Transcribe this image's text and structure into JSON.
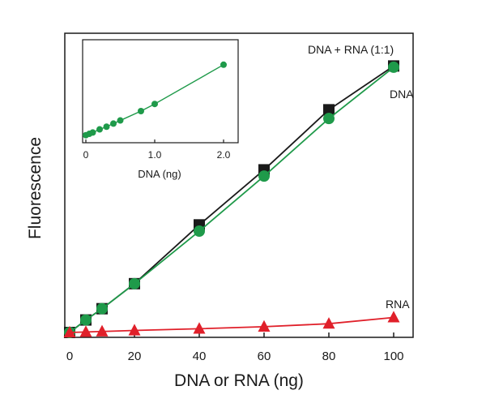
{
  "chart_data": {
    "type": "line",
    "ylabel": "Fluorescence",
    "xlabel": "DNA or RNA (ng)",
    "xlim": [
      -2,
      108
    ],
    "ylim": [
      0,
      105
    ],
    "xticks": [
      0,
      20,
      40,
      60,
      80,
      100
    ],
    "xtick_labels": [
      "0",
      "20",
      "40",
      "60",
      "80",
      "100"
    ],
    "y_tick_labels_shown": false,
    "grid": false,
    "series": [
      {
        "name": "DNA + RNA (1:1)",
        "color": "#1a1a1a",
        "marker": "square",
        "x": [
          0,
          5,
          10,
          20,
          40,
          60,
          80,
          100
        ],
        "y": [
          0,
          5,
          9.5,
          19.5,
          43,
          65,
          89,
          106.5
        ]
      },
      {
        "name": "DNA",
        "color": "#1f9a4a",
        "marker": "circle",
        "x": [
          0,
          5,
          10,
          20,
          40,
          60,
          80,
          100
        ],
        "y": [
          0,
          5,
          9.5,
          19.5,
          40.5,
          62.5,
          85.5,
          106
        ]
      },
      {
        "name": "RNA",
        "color": "#e0202a",
        "marker": "triangle",
        "x": [
          0,
          5,
          10,
          20,
          40,
          60,
          80,
          100
        ],
        "y": [
          0,
          0.2,
          0.4,
          0.8,
          1.5,
          2.3,
          3.5,
          6
        ]
      }
    ],
    "inset": {
      "type": "line",
      "xlabel": "DNA (ng)",
      "xlim": [
        -0.05,
        2.2
      ],
      "ylim": [
        0,
        1.1
      ],
      "xticks": [
        0,
        1.0,
        2.0
      ],
      "xtick_labels": [
        "0",
        "1.0",
        "2.0"
      ],
      "series": [
        {
          "name": "DNA",
          "color": "#1f9a4a",
          "marker": "circle",
          "x": [
            0,
            0.05,
            0.1,
            0.2,
            0.3,
            0.4,
            0.5,
            0.8,
            1.0,
            2.0
          ],
          "y": [
            0.03,
            0.045,
            0.06,
            0.095,
            0.125,
            0.16,
            0.195,
            0.3,
            0.38,
            0.82
          ]
        }
      ]
    }
  }
}
